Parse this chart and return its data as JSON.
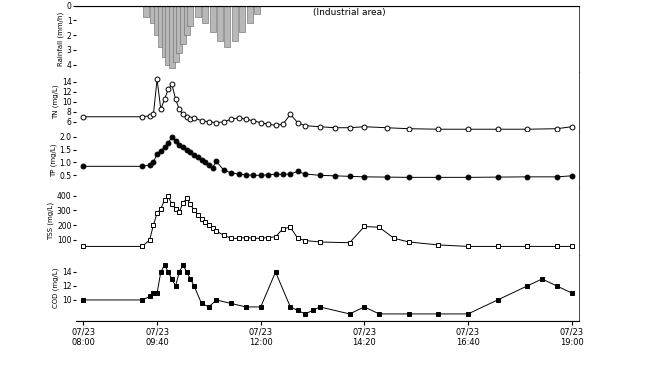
{
  "annotation": "(Industrial area)",
  "x_labels": [
    "07/23\n08:00",
    "07/23\n09:40",
    "07/23\n12:00",
    "07/23\n14:20",
    "07/23\n16:40",
    "07/23\n19:00"
  ],
  "x_tick_pos": [
    0,
    100,
    240,
    380,
    520,
    660
  ],
  "rainfall_times": [
    85,
    95,
    100,
    105,
    110,
    115,
    120,
    125,
    130,
    135,
    140,
    145,
    155,
    165,
    175,
    185,
    195,
    205,
    215,
    225,
    235
  ],
  "rainfall_values": [
    0.8,
    1.2,
    2.0,
    2.8,
    3.5,
    4.0,
    4.2,
    3.8,
    3.2,
    2.6,
    2.0,
    1.4,
    0.8,
    1.2,
    1.8,
    2.4,
    2.8,
    2.4,
    1.8,
    1.2,
    0.6
  ],
  "tn_times": [
    0,
    80,
    90,
    95,
    100,
    105,
    110,
    115,
    120,
    125,
    130,
    135,
    140,
    145,
    150,
    160,
    170,
    180,
    190,
    200,
    210,
    220,
    230,
    240,
    250,
    260,
    270,
    280,
    290,
    300,
    320,
    340,
    360,
    380,
    410,
    440,
    480,
    520,
    560,
    600,
    640,
    660
  ],
  "tn_values": [
    7.0,
    7.0,
    7.2,
    7.5,
    14.5,
    8.5,
    10.5,
    12.5,
    13.5,
    10.5,
    8.5,
    7.5,
    7.0,
    6.5,
    6.8,
    6.2,
    6.0,
    5.8,
    6.0,
    6.5,
    6.8,
    6.5,
    6.2,
    5.8,
    5.5,
    5.3,
    5.5,
    7.5,
    5.8,
    5.2,
    5.0,
    4.8,
    4.8,
    5.0,
    4.8,
    4.6,
    4.5,
    4.5,
    4.5,
    4.5,
    4.6,
    5.0
  ],
  "tp_times": [
    0,
    80,
    90,
    95,
    100,
    105,
    110,
    115,
    120,
    125,
    130,
    135,
    140,
    145,
    150,
    155,
    160,
    165,
    170,
    175,
    180,
    190,
    200,
    210,
    220,
    230,
    240,
    250,
    260,
    270,
    280,
    290,
    300,
    320,
    340,
    360,
    380,
    410,
    440,
    480,
    520,
    560,
    600,
    640,
    660
  ],
  "tp_values": [
    0.85,
    0.85,
    0.9,
    1.0,
    1.35,
    1.45,
    1.6,
    1.75,
    2.0,
    1.85,
    1.7,
    1.6,
    1.5,
    1.4,
    1.3,
    1.2,
    1.1,
    1.0,
    0.9,
    0.8,
    1.05,
    0.7,
    0.6,
    0.55,
    0.52,
    0.5,
    0.5,
    0.52,
    0.54,
    0.54,
    0.55,
    0.65,
    0.55,
    0.5,
    0.48,
    0.46,
    0.44,
    0.43,
    0.42,
    0.42,
    0.42,
    0.43,
    0.44,
    0.44,
    0.48
  ],
  "sss_times": [
    0,
    80,
    90,
    95,
    100,
    105,
    110,
    115,
    120,
    125,
    130,
    135,
    140,
    145,
    150,
    155,
    160,
    165,
    170,
    175,
    180,
    190,
    200,
    210,
    220,
    230,
    240,
    250,
    260,
    270,
    280,
    290,
    300,
    320,
    360,
    380,
    400,
    420,
    440,
    480,
    520,
    560,
    600,
    640,
    660
  ],
  "sss_values": [
    55,
    55,
    100,
    200,
    280,
    310,
    370,
    395,
    340,
    310,
    290,
    350,
    380,
    340,
    300,
    270,
    240,
    220,
    200,
    180,
    160,
    130,
    110,
    110,
    115,
    110,
    110,
    115,
    120,
    175,
    185,
    110,
    95,
    85,
    80,
    190,
    185,
    110,
    85,
    65,
    55,
    55,
    55,
    55,
    55
  ],
  "cod_times": [
    0,
    80,
    90,
    95,
    100,
    105,
    110,
    115,
    120,
    125,
    130,
    135,
    140,
    145,
    150,
    160,
    170,
    180,
    200,
    220,
    240,
    260,
    280,
    290,
    300,
    310,
    320,
    360,
    380,
    400,
    440,
    480,
    520,
    560,
    600,
    620,
    640,
    660
  ],
  "cod_values": [
    10,
    10,
    10.5,
    11,
    11,
    14,
    15,
    14,
    13,
    12,
    14,
    15,
    14,
    13,
    12,
    9.5,
    9,
    10,
    9.5,
    9,
    9,
    14,
    9,
    8.5,
    8,
    8.5,
    9,
    8,
    9,
    8,
    8,
    8,
    8,
    10,
    12,
    13,
    12,
    11
  ],
  "bar_color": "#b8b8b8",
  "bg_color": "#ffffff",
  "line_color": "#000000"
}
